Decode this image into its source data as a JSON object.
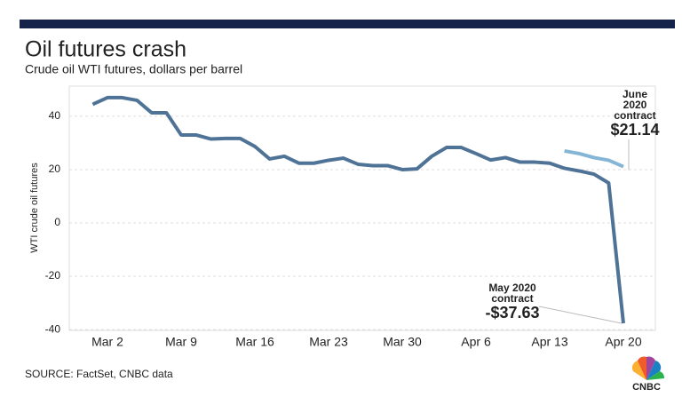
{
  "chart_data": {
    "type": "line",
    "title": "Oil futures crash",
    "subtitle": "Crude oil WTI futures, dollars per barrel",
    "y_label": "WTI crude oil futures",
    "source": "SOURCE: FactSet, CNBC data",
    "logo_text": "CNBC",
    "categories": [
      null,
      "Mar 2",
      null,
      null,
      null,
      null,
      "Mar 9",
      null,
      null,
      null,
      null,
      "Mar 16",
      null,
      null,
      null,
      null,
      "Mar 23",
      null,
      null,
      null,
      null,
      "Mar 30",
      null,
      null,
      null,
      null,
      "Apr 6",
      null,
      null,
      null,
      null,
      "Apr 13",
      null,
      null,
      null,
      null,
      "Apr 20"
    ],
    "series": [
      {
        "color": "#4f7396",
        "values": [
          44.5,
          47,
          47,
          46,
          41.3,
          41.3,
          33,
          33,
          31.5,
          31.7,
          31.7,
          28.7,
          24,
          25,
          22.4,
          22.4,
          23.5,
          24.3,
          22,
          21.5,
          21.5,
          20,
          20.3,
          25,
          28.3,
          28.3,
          26,
          23.6,
          24.5,
          22.8,
          22.8,
          22.4,
          20.5,
          19.5,
          18.3,
          15,
          -37.63
        ],
        "value_labels": [
          null,
          null,
          null,
          null,
          null,
          null,
          null,
          null,
          null,
          null,
          null,
          null,
          null,
          null,
          null,
          null,
          null,
          null,
          null,
          null,
          null,
          null,
          null,
          null,
          null,
          null,
          null,
          null,
          null,
          null,
          null,
          null,
          null,
          null,
          null,
          null,
          "-$37.63"
        ]
      },
      {
        "color": "#86b6d6",
        "values": [
          null,
          null,
          null,
          null,
          null,
          null,
          null,
          null,
          null,
          null,
          null,
          null,
          null,
          null,
          null,
          null,
          null,
          null,
          null,
          null,
          null,
          null,
          null,
          null,
          null,
          null,
          null,
          null,
          null,
          null,
          null,
          null,
          27,
          26,
          24.5,
          23.5,
          21.14
        ],
        "value_labels": [
          null,
          null,
          null,
          null,
          null,
          null,
          null,
          null,
          null,
          null,
          null,
          null,
          null,
          null,
          null,
          null,
          null,
          null,
          null,
          null,
          null,
          null,
          null,
          null,
          null,
          null,
          null,
          null,
          null,
          null,
          null,
          null,
          null,
          null,
          null,
          null,
          "$21.14"
        ]
      }
    ],
    "annotations": [
      {
        "series": 1,
        "lines": [
          "June",
          "2020",
          "contract"
        ]
      },
      {
        "series": 0,
        "lines": [
          "May 2020",
          "contract"
        ]
      }
    ],
    "ylim": [
      -40.3,
      51.3
    ],
    "yticks": [
      -40,
      -20,
      0,
      20,
      40
    ],
    "grid": true
  }
}
